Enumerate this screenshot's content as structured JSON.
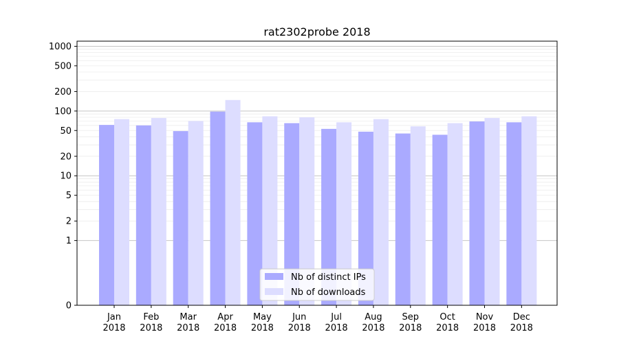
{
  "chart_data": {
    "type": "bar",
    "title": "rat2302probe 2018",
    "xlabel": "",
    "ylabel": "",
    "y_scale": "symlog",
    "ylim": [
      0,
      1200
    ],
    "y_ticks": [
      0,
      1,
      2,
      5,
      10,
      20,
      50,
      100,
      200,
      500,
      1000
    ],
    "y_tick_labels": [
      "0",
      "1",
      "2",
      "5",
      "10",
      "20",
      "50",
      "100",
      "200",
      "500",
      "1000"
    ],
    "grid": true,
    "legend_position": "bottom-center",
    "categories": [
      {
        "month": "Jan",
        "year": "2018"
      },
      {
        "month": "Feb",
        "year": "2018"
      },
      {
        "month": "Mar",
        "year": "2018"
      },
      {
        "month": "Apr",
        "year": "2018"
      },
      {
        "month": "May",
        "year": "2018"
      },
      {
        "month": "Jun",
        "year": "2018"
      },
      {
        "month": "Jul",
        "year": "2018"
      },
      {
        "month": "Aug",
        "year": "2018"
      },
      {
        "month": "Sep",
        "year": "2018"
      },
      {
        "month": "Oct",
        "year": "2018"
      },
      {
        "month": "Nov",
        "year": "2018"
      },
      {
        "month": "Dec",
        "year": "2018"
      }
    ],
    "series": [
      {
        "name": "Nb of distinct IPs",
        "color": "#aaaaff",
        "values": [
          61,
          60,
          49,
          98,
          67,
          65,
          53,
          48,
          45,
          43,
          69,
          67
        ]
      },
      {
        "name": "Nb of downloads",
        "color": "#ddddff",
        "values": [
          75,
          78,
          70,
          148,
          83,
          80,
          67,
          75,
          58,
          65,
          78,
          83
        ]
      }
    ]
  }
}
